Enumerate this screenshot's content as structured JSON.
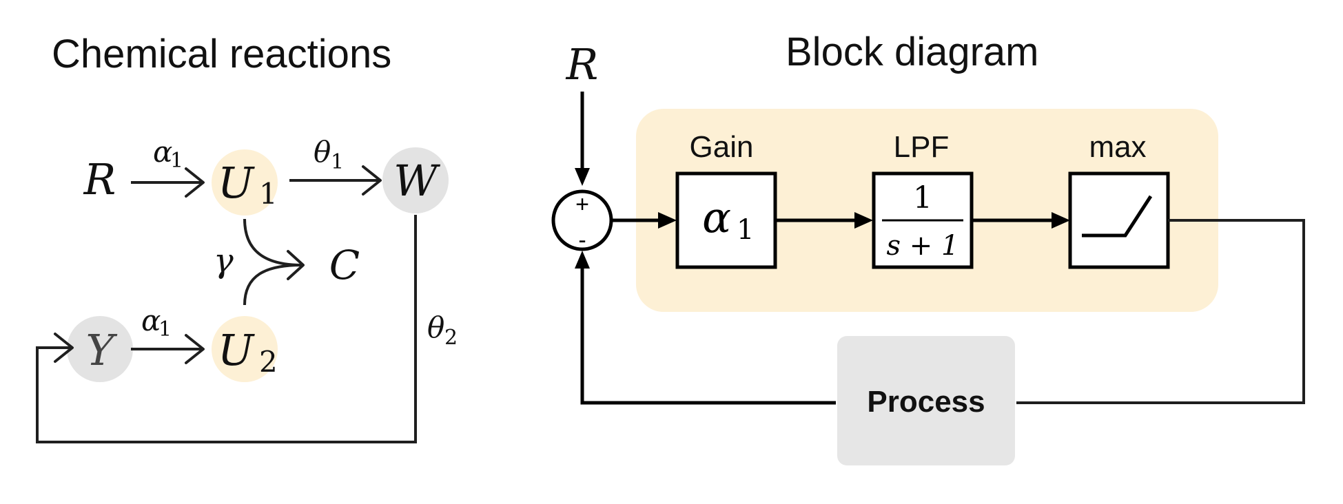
{
  "colors": {
    "highlight": "#fdf0d5",
    "node_gray": "#e3e3e3",
    "process_gray": "#e6e6e6",
    "ink": "#1f1f1f"
  },
  "left": {
    "title": "Chemical reactions",
    "nodes": {
      "R": "R",
      "U1": "U",
      "U1_sub": "1",
      "W": "W",
      "Y": "Y",
      "U2": "U",
      "U2_sub": "2",
      "C": "C"
    },
    "labels": {
      "alpha_top": "α",
      "alpha_top_sub": "1",
      "theta1": "θ",
      "theta1_sub": "1",
      "gamma": "γ",
      "alpha_bot": "α",
      "alpha_bot_sub": "1",
      "theta2": "θ",
      "theta2_sub": "2"
    }
  },
  "right": {
    "title": "Block diagram",
    "input": "R",
    "sum": {
      "plus": "+",
      "minus": "-"
    },
    "blocks": [
      {
        "title": "Gain",
        "symbol": "α",
        "symbol_sub": "1"
      },
      {
        "title": "LPF",
        "numerator": "1",
        "denominator": "s + 1"
      },
      {
        "title": "max"
      }
    ],
    "process": "Process"
  }
}
